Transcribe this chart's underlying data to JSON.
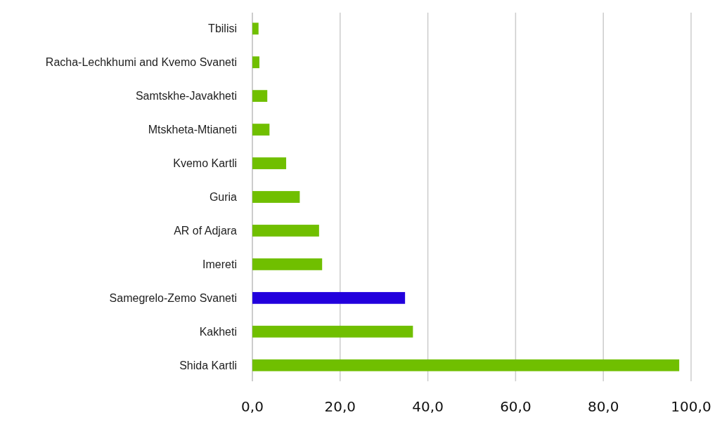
{
  "chart_data": {
    "type": "bar",
    "orientation": "horizontal",
    "categories": [
      "Tbilisi",
      "Racha-Lechkhumi and Kvemo Svaneti",
      "Samtskhe-Javakheti",
      "Mtskheta-Mtianeti",
      "Kvemo Kartli",
      "Guria",
      "AR of Adjara",
      "Imereti",
      "Samegrelo-Zemo Svaneti",
      "Kakheti",
      "Shida Kartli"
    ],
    "values": [
      1.4,
      1.6,
      3.4,
      3.9,
      7.7,
      10.8,
      15.2,
      15.9,
      34.8,
      36.6,
      97.3
    ],
    "colors": [
      "#70bf00",
      "#70bf00",
      "#70bf00",
      "#70bf00",
      "#70bf00",
      "#70bf00",
      "#70bf00",
      "#70bf00",
      "#2200dd",
      "#70bf00",
      "#70bf00"
    ],
    "xlim": [
      0,
      100
    ],
    "xticks": [
      {
        "value": 0,
        "label": "0,0"
      },
      {
        "value": 20,
        "label": "20,0"
      },
      {
        "value": 40,
        "label": "40,0"
      },
      {
        "value": 60,
        "label": "60,0"
      },
      {
        "value": 80,
        "label": "80,0"
      },
      {
        "value": 100,
        "label": "100,0"
      }
    ],
    "grid": "x"
  }
}
